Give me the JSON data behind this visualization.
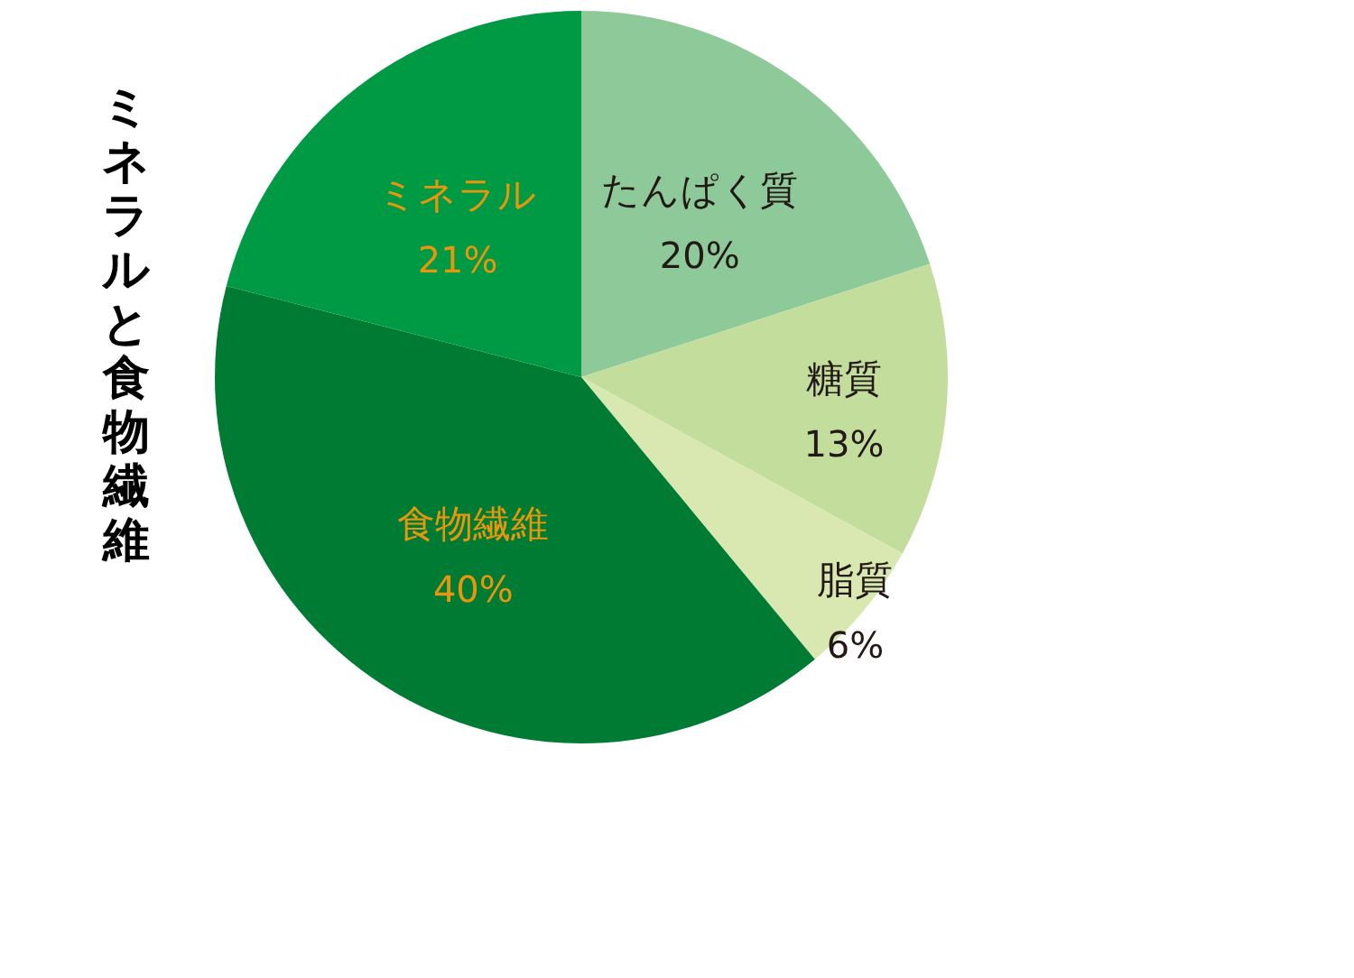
{
  "chart_data": {
    "type": "pie",
    "title": "ミネラルと食物繊維",
    "categories": [
      "たんぱく質",
      "糖質",
      "脂質",
      "食物繊維",
      "ミネラル"
    ],
    "values": [
      20,
      13,
      6,
      40,
      21
    ],
    "value_labels": [
      "20%",
      "13%",
      "6%",
      "40%",
      "21%"
    ],
    "colors": [
      "#8dc999",
      "#c2dd9c",
      "#d9e8b0",
      "#007b34",
      "#009a44"
    ],
    "legend": false
  }
}
